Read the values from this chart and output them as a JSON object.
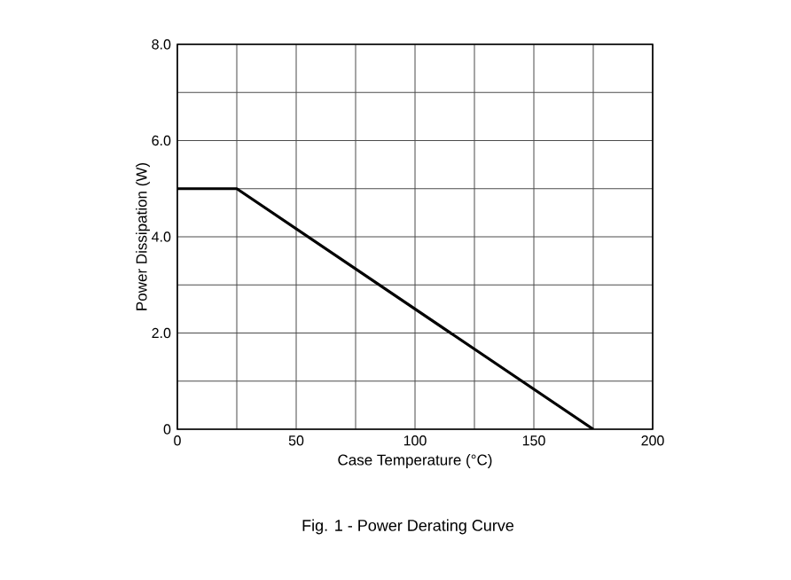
{
  "chart_data": {
    "type": "line",
    "title": "Fig. 1 - Power Derating Curve",
    "xlabel": "Case Temperature (°C)",
    "ylabel": "Power Dissipation (W)",
    "x": [
      0,
      25,
      175
    ],
    "series": [
      {
        "color": "#000000",
        "values": [
          5,
          5,
          0
        ]
      }
    ],
    "xlim": [
      0,
      200
    ],
    "ylim": [
      0,
      8
    ],
    "xticks": [
      0,
      {
        "value": 25,
        "label": null
      },
      50,
      {
        "value": 75,
        "label": null
      },
      100,
      {
        "value": 125,
        "label": null
      },
      150,
      {
        "value": 175,
        "label": null
      },
      200
    ],
    "yticks": [
      0,
      {
        "value": 1,
        "label": null
      },
      {
        "value": 2,
        "label": "2.0"
      },
      {
        "value": 3,
        "label": null
      },
      {
        "value": 4,
        "label": "4.0"
      },
      {
        "value": 5,
        "label": null
      },
      {
        "value": 6,
        "label": "6.0"
      },
      {
        "value": 7,
        "label": null
      },
      {
        "value": 8,
        "label": "8.0"
      }
    ],
    "grid": true,
    "marker": "none",
    "line_style": "solid"
  }
}
